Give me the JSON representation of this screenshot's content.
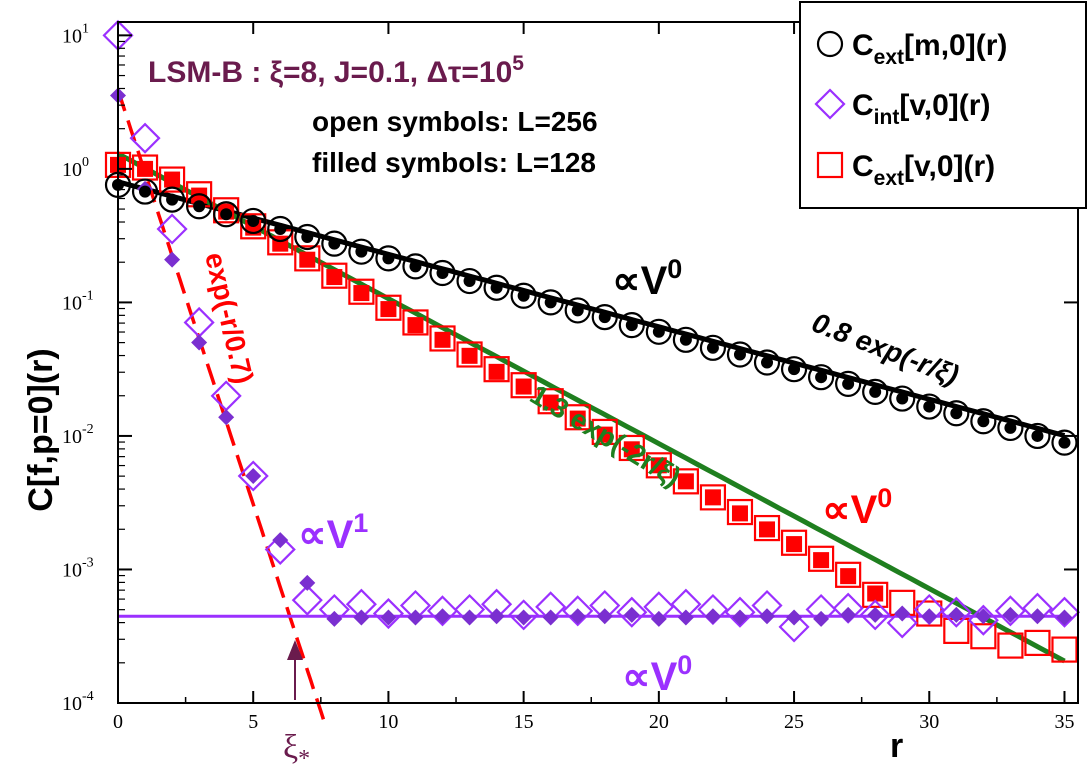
{
  "chart_data": {
    "type": "scatter",
    "xlabel": "r",
    "ylabel": "C[f,p=0](r)",
    "xlim": [
      0,
      35.5
    ],
    "ylim_log10": [
      -4,
      1.1
    ],
    "xticks": [
      "0",
      "5",
      "10",
      "15",
      "20",
      "25",
      "30",
      "35"
    ],
    "yticks": [
      {
        "base": "10",
        "exp": "-4",
        "value": -4
      },
      {
        "base": "10",
        "exp": "-3",
        "value": -3
      },
      {
        "base": "10",
        "exp": "-2",
        "value": -2
      },
      {
        "base": "10",
        "exp": "-1",
        "value": -1
      },
      {
        "base": "10",
        "exp": "0",
        "value": 0
      },
      {
        "base": "10",
        "exp": "1",
        "value": 1
      }
    ],
    "params": {
      "model": "LSM-B : ",
      "xi": "ξ=8, J=0.1, ",
      "dtau": "Δτ=10",
      "dtau_exp": "5"
    },
    "notes": [
      "open symbols: L=256",
      "filled symbols: L=128"
    ],
    "legend": [
      {
        "base": "C",
        "sub": "ext",
        "rest": "[m,0](r)",
        "marker": "circle",
        "color": "#000000"
      },
      {
        "base": "C",
        "sub": "int",
        "rest": "[v,0](r)",
        "marker": "diamond",
        "color": "#9b30ff"
      },
      {
        "base": "C",
        "sub": "ext",
        "rest": "[v,0](r)",
        "marker": "square",
        "color": "#ff0000"
      }
    ],
    "colors": {
      "m": "#000000",
      "vint": "#9b30ff",
      "vext": "#ff0000",
      "fit_green": "#1f7f1f",
      "fit_red": "#ff0000",
      "dark_purple": "#6a1b4d",
      "purple_fill": "#7a2fd0"
    },
    "series": [
      {
        "name": "C_ext[m,0](r) L=256",
        "marker": "circle",
        "filled": false,
        "x": [
          0,
          1,
          2,
          3,
          4,
          5,
          6,
          7,
          8,
          9,
          10,
          11,
          12,
          13,
          14,
          15,
          16,
          17,
          18,
          19,
          20,
          21,
          22,
          23,
          24,
          25,
          26,
          27,
          28,
          29,
          30,
          31,
          32,
          33,
          34,
          35
        ],
        "log10y": [
          -0.12,
          -0.17,
          -0.23,
          -0.28,
          -0.34,
          -0.39,
          -0.45,
          -0.51,
          -0.56,
          -0.62,
          -0.67,
          -0.73,
          -0.78,
          -0.84,
          -0.89,
          -0.95,
          -1.0,
          -1.06,
          -1.11,
          -1.17,
          -1.22,
          -1.28,
          -1.34,
          -1.39,
          -1.45,
          -1.5,
          -1.56,
          -1.61,
          -1.67,
          -1.72,
          -1.78,
          -1.83,
          -1.89,
          -1.94,
          -2.0,
          -2.05
        ]
      },
      {
        "name": "C_ext[m,0](r) L=128",
        "marker": "circle",
        "filled": true,
        "x": [
          0,
          1,
          2,
          3,
          4,
          5,
          6,
          7,
          8,
          9,
          10,
          11,
          12,
          13,
          14,
          15,
          16,
          17,
          18,
          19,
          20,
          21,
          22,
          23,
          24,
          25,
          26,
          27,
          28,
          29,
          30,
          31,
          32,
          33,
          34,
          35
        ],
        "log10y": [
          -0.12,
          -0.17,
          -0.23,
          -0.28,
          -0.34,
          -0.39,
          -0.45,
          -0.51,
          -0.56,
          -0.62,
          -0.67,
          -0.73,
          -0.78,
          -0.84,
          -0.89,
          -0.95,
          -1.0,
          -1.06,
          -1.11,
          -1.17,
          -1.22,
          -1.28,
          -1.34,
          -1.39,
          -1.45,
          -1.5,
          -1.56,
          -1.61,
          -1.67,
          -1.72,
          -1.78,
          -1.83,
          -1.89,
          -1.94,
          -2.0,
          -2.05
        ]
      },
      {
        "name": "C_int[v,0](r) L=256",
        "marker": "diamond",
        "filled": false,
        "x": [
          0,
          1,
          2,
          3,
          4,
          5,
          6,
          7,
          8,
          9,
          10,
          11,
          12,
          13,
          14,
          15,
          16,
          17,
          18,
          19,
          20,
          21,
          22,
          23,
          24,
          25,
          26,
          27,
          28,
          29,
          30,
          31,
          32,
          33,
          34,
          35
        ],
        "log10y": [
          1.0,
          0.23,
          -0.45,
          -1.15,
          -1.7,
          -2.3,
          -2.85,
          -3.23,
          -3.3,
          -3.26,
          -3.33,
          -3.27,
          -3.31,
          -3.3,
          -3.26,
          -3.34,
          -3.28,
          -3.31,
          -3.27,
          -3.32,
          -3.28,
          -3.26,
          -3.3,
          -3.32,
          -3.27,
          -3.43,
          -3.3,
          -3.29,
          -3.34,
          -3.4,
          -3.3,
          -3.32,
          -3.38,
          -3.31,
          -3.29,
          -3.32
        ]
      },
      {
        "name": "C_int[v,0](r) L=128",
        "marker": "diamond",
        "filled": true,
        "x": [
          0,
          1,
          2,
          3,
          4,
          5,
          6,
          7,
          8,
          9,
          10,
          11,
          12,
          13,
          14,
          15,
          16,
          17,
          18,
          19,
          20,
          21,
          22,
          23,
          24,
          25,
          26,
          27,
          28,
          29,
          30,
          31,
          32,
          33,
          34,
          35
        ],
        "log10y": [
          0.55,
          -0.15,
          -0.68,
          -1.3,
          -1.86,
          -2.3,
          -2.78,
          -3.1,
          -3.37,
          -3.36,
          -3.36,
          -3.36,
          -3.35,
          -3.36,
          -3.35,
          -3.36,
          -3.36,
          -3.35,
          -3.35,
          -3.34,
          -3.37,
          -3.36,
          -3.35,
          -3.36,
          -3.35,
          -3.36,
          -3.37,
          -3.34,
          -3.34,
          -3.33,
          -3.35,
          -3.34,
          -3.35,
          -3.34,
          -3.35,
          -3.36
        ]
      },
      {
        "name": "C_ext[v,0](r) L=256",
        "marker": "square",
        "filled": false,
        "x": [
          0,
          1,
          2,
          3,
          4,
          5,
          6,
          7,
          8,
          9,
          10,
          11,
          12,
          13,
          14,
          15,
          16,
          17,
          18,
          19,
          20,
          21,
          22,
          23,
          24,
          25,
          26,
          27,
          28,
          29,
          30,
          31,
          32,
          33,
          34,
          35
        ],
        "log10y": [
          0.03,
          0.01,
          -0.08,
          -0.19,
          -0.31,
          -0.43,
          -0.55,
          -0.67,
          -0.8,
          -0.92,
          -1.04,
          -1.15,
          -1.27,
          -1.39,
          -1.5,
          -1.62,
          -1.74,
          -1.86,
          -1.97,
          -2.09,
          -2.22,
          -2.34,
          -2.46,
          -2.57,
          -2.69,
          -2.8,
          -2.92,
          -3.04,
          -3.19,
          -3.25,
          -3.33,
          -3.46,
          -3.5,
          -3.57,
          -3.55,
          -3.6
        ]
      },
      {
        "name": "C_ext[v,0](r) L=128",
        "marker": "square",
        "filled": true,
        "x": [
          0,
          1,
          2,
          3,
          4,
          5,
          6,
          7,
          8,
          9,
          10,
          11,
          12,
          13,
          14,
          15,
          16,
          17,
          18,
          19,
          20,
          21,
          22,
          23,
          24,
          25,
          26,
          27,
          28
        ],
        "log10y": [
          0.03,
          0.0,
          -0.08,
          -0.2,
          -0.32,
          -0.44,
          -0.56,
          -0.68,
          -0.81,
          -0.93,
          -1.05,
          -1.17,
          -1.28,
          -1.4,
          -1.52,
          -1.63,
          -1.75,
          -1.87,
          -1.99,
          -2.1,
          -2.22,
          -2.34,
          -2.46,
          -2.58,
          -2.7,
          -2.81,
          -2.93,
          -3.05,
          -3.18
        ]
      }
    ],
    "fits": [
      {
        "name": "0.8 exp(-r/ξ)",
        "amplitude": 0.8,
        "decay_length": 8,
        "color": "#000000",
        "style": "solid",
        "x_range": [
          0,
          35
        ]
      },
      {
        "name": "1.3 exp(-2r/ξ)",
        "amplitude": 1.3,
        "decay_length": 4,
        "color": "#1f7f1f",
        "style": "solid",
        "x_range": [
          0,
          35
        ]
      },
      {
        "name": "exp(-r/0.7)",
        "amplitude": 3.9,
        "decay_length": 0.7,
        "color": "#ff0000",
        "style": "dashed",
        "x_range": [
          0,
          7.6
        ]
      },
      {
        "name": "plateau",
        "log10y": -3.35,
        "color": "#9b30ff",
        "style": "solid",
        "x_range": [
          0,
          35
        ]
      }
    ],
    "annotations": [
      {
        "text": "exp(-r/0.7)",
        "color": "#ff0000"
      },
      {
        "text": "1.3 exp(-2r/ξ)",
        "color": "#1f7f1f"
      },
      {
        "text": "0.8 exp(-r/ξ)",
        "color": "#000000"
      },
      {
        "text": "∝V",
        "exp": "0",
        "color": "#000000"
      },
      {
        "text": "∝V",
        "exp": "0",
        "color": "#ff0000"
      },
      {
        "text": "∝V",
        "exp": "0",
        "color": "#9b30ff"
      },
      {
        "text": "∝V",
        "exp": "1",
        "color": "#9b30ff"
      }
    ],
    "xi_star": {
      "text": "ξ",
      "sub": "*",
      "x": 6.4
    }
  }
}
